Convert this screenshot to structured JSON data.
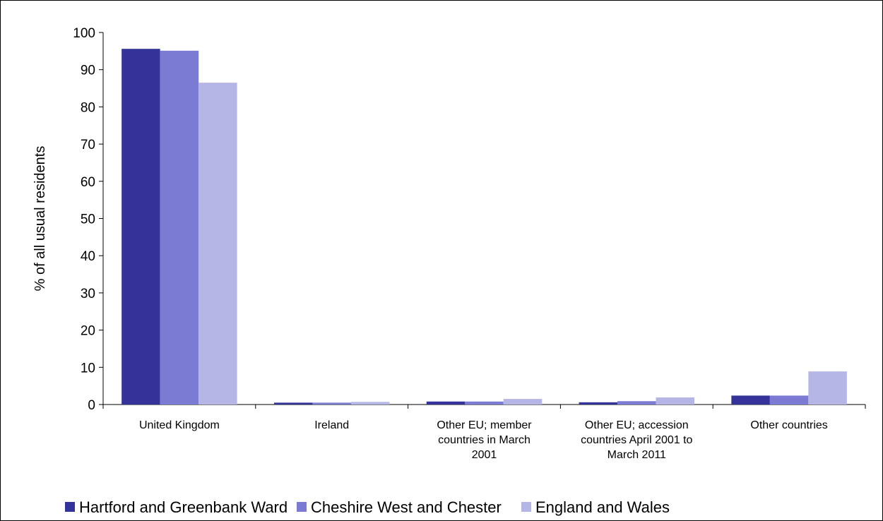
{
  "chart_data": {
    "type": "bar",
    "title": "",
    "xlabel": "",
    "ylabel": "% of all usual residents",
    "ylim": [
      0,
      100
    ],
    "yticks": [
      0,
      10,
      20,
      30,
      40,
      50,
      60,
      70,
      80,
      90,
      100
    ],
    "grid": false,
    "legend_position": "bottom",
    "categories": [
      "United Kingdom",
      "Ireland",
      "Other EU; member countries in March 2001",
      "Other EU; accession countries April 2001 to March 2011",
      "Other countries"
    ],
    "category_label_lines": [
      [
        "United Kingdom"
      ],
      [
        "Ireland"
      ],
      [
        "Other EU; member",
        "countries in March",
        "2001"
      ],
      [
        "Other EU; accession",
        "countries April 2001 to",
        "March 2011"
      ],
      [
        "Other countries"
      ]
    ],
    "series": [
      {
        "name": "Hartford and Greenbank Ward",
        "color": "#333399",
        "values": [
          95.6,
          0.5,
          0.8,
          0.6,
          2.4
        ]
      },
      {
        "name": "Cheshire West and Chester",
        "color": "#7b7bd4",
        "values": [
          95.1,
          0.5,
          0.8,
          0.9,
          2.4
        ]
      },
      {
        "name": "England and Wales",
        "color": "#b6b6e6",
        "values": [
          86.5,
          0.7,
          1.5,
          1.9,
          8.9
        ]
      }
    ]
  }
}
